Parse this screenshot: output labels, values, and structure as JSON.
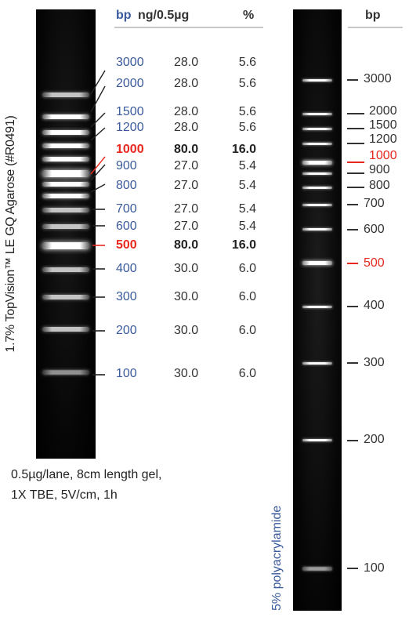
{
  "agarose": {
    "caption": "1.7% TopVision™ LE GQ Agarose (#R0491)",
    "conditions_line1": "0.5µg/lane, 8cm length gel,",
    "conditions_line2": "1X TBE, 5V/cm, 1h",
    "header": {
      "bp": "bp",
      "ng": "ng/0.5µg",
      "pct": "%"
    },
    "rows": [
      {
        "bp": "3000",
        "ng": "28.0",
        "pct": "5.6"
      },
      {
        "bp": "2000",
        "ng": "28.0",
        "pct": "5.6"
      },
      {
        "bp": "1500",
        "ng": "28.0",
        "pct": "5.6"
      },
      {
        "bp": "1200",
        "ng": "28.0",
        "pct": "5.6"
      },
      {
        "bp": "1000",
        "ng": "80.0",
        "pct": "16.0",
        "reference": true
      },
      {
        "bp": "900",
        "ng": "27.0",
        "pct": "5.4"
      },
      {
        "bp": "800",
        "ng": "27.0",
        "pct": "5.4"
      },
      {
        "bp": "700",
        "ng": "27.0",
        "pct": "5.4"
      },
      {
        "bp": "600",
        "ng": "27.0",
        "pct": "5.4"
      },
      {
        "bp": "500",
        "ng": "80.0",
        "pct": "16.0",
        "reference": true
      },
      {
        "bp": "400",
        "ng": "30.0",
        "pct": "6.0"
      },
      {
        "bp": "300",
        "ng": "30.0",
        "pct": "6.0"
      },
      {
        "bp": "200",
        "ng": "30.0",
        "pct": "6.0"
      },
      {
        "bp": "100",
        "ng": "30.0",
        "pct": "6.0"
      }
    ]
  },
  "polyacrylamide": {
    "caption": "5% polyacrylamide",
    "header_bp": "bp",
    "markers": [
      {
        "bp": "3000"
      },
      {
        "bp": "2000"
      },
      {
        "bp": "1500"
      },
      {
        "bp": "1200"
      },
      {
        "bp": "1000",
        "reference": true
      },
      {
        "bp": "900"
      },
      {
        "bp": "800"
      },
      {
        "bp": "700"
      },
      {
        "bp": "600"
      },
      {
        "bp": "500",
        "reference": true
      },
      {
        "bp": "400"
      },
      {
        "bp": "300"
      },
      {
        "bp": "200"
      },
      {
        "bp": "100"
      }
    ]
  },
  "colors": {
    "label_blue": "#3a5a9c",
    "reference_red": "#e8281e",
    "gel_background": "#000000",
    "band": "#ffffff"
  }
}
